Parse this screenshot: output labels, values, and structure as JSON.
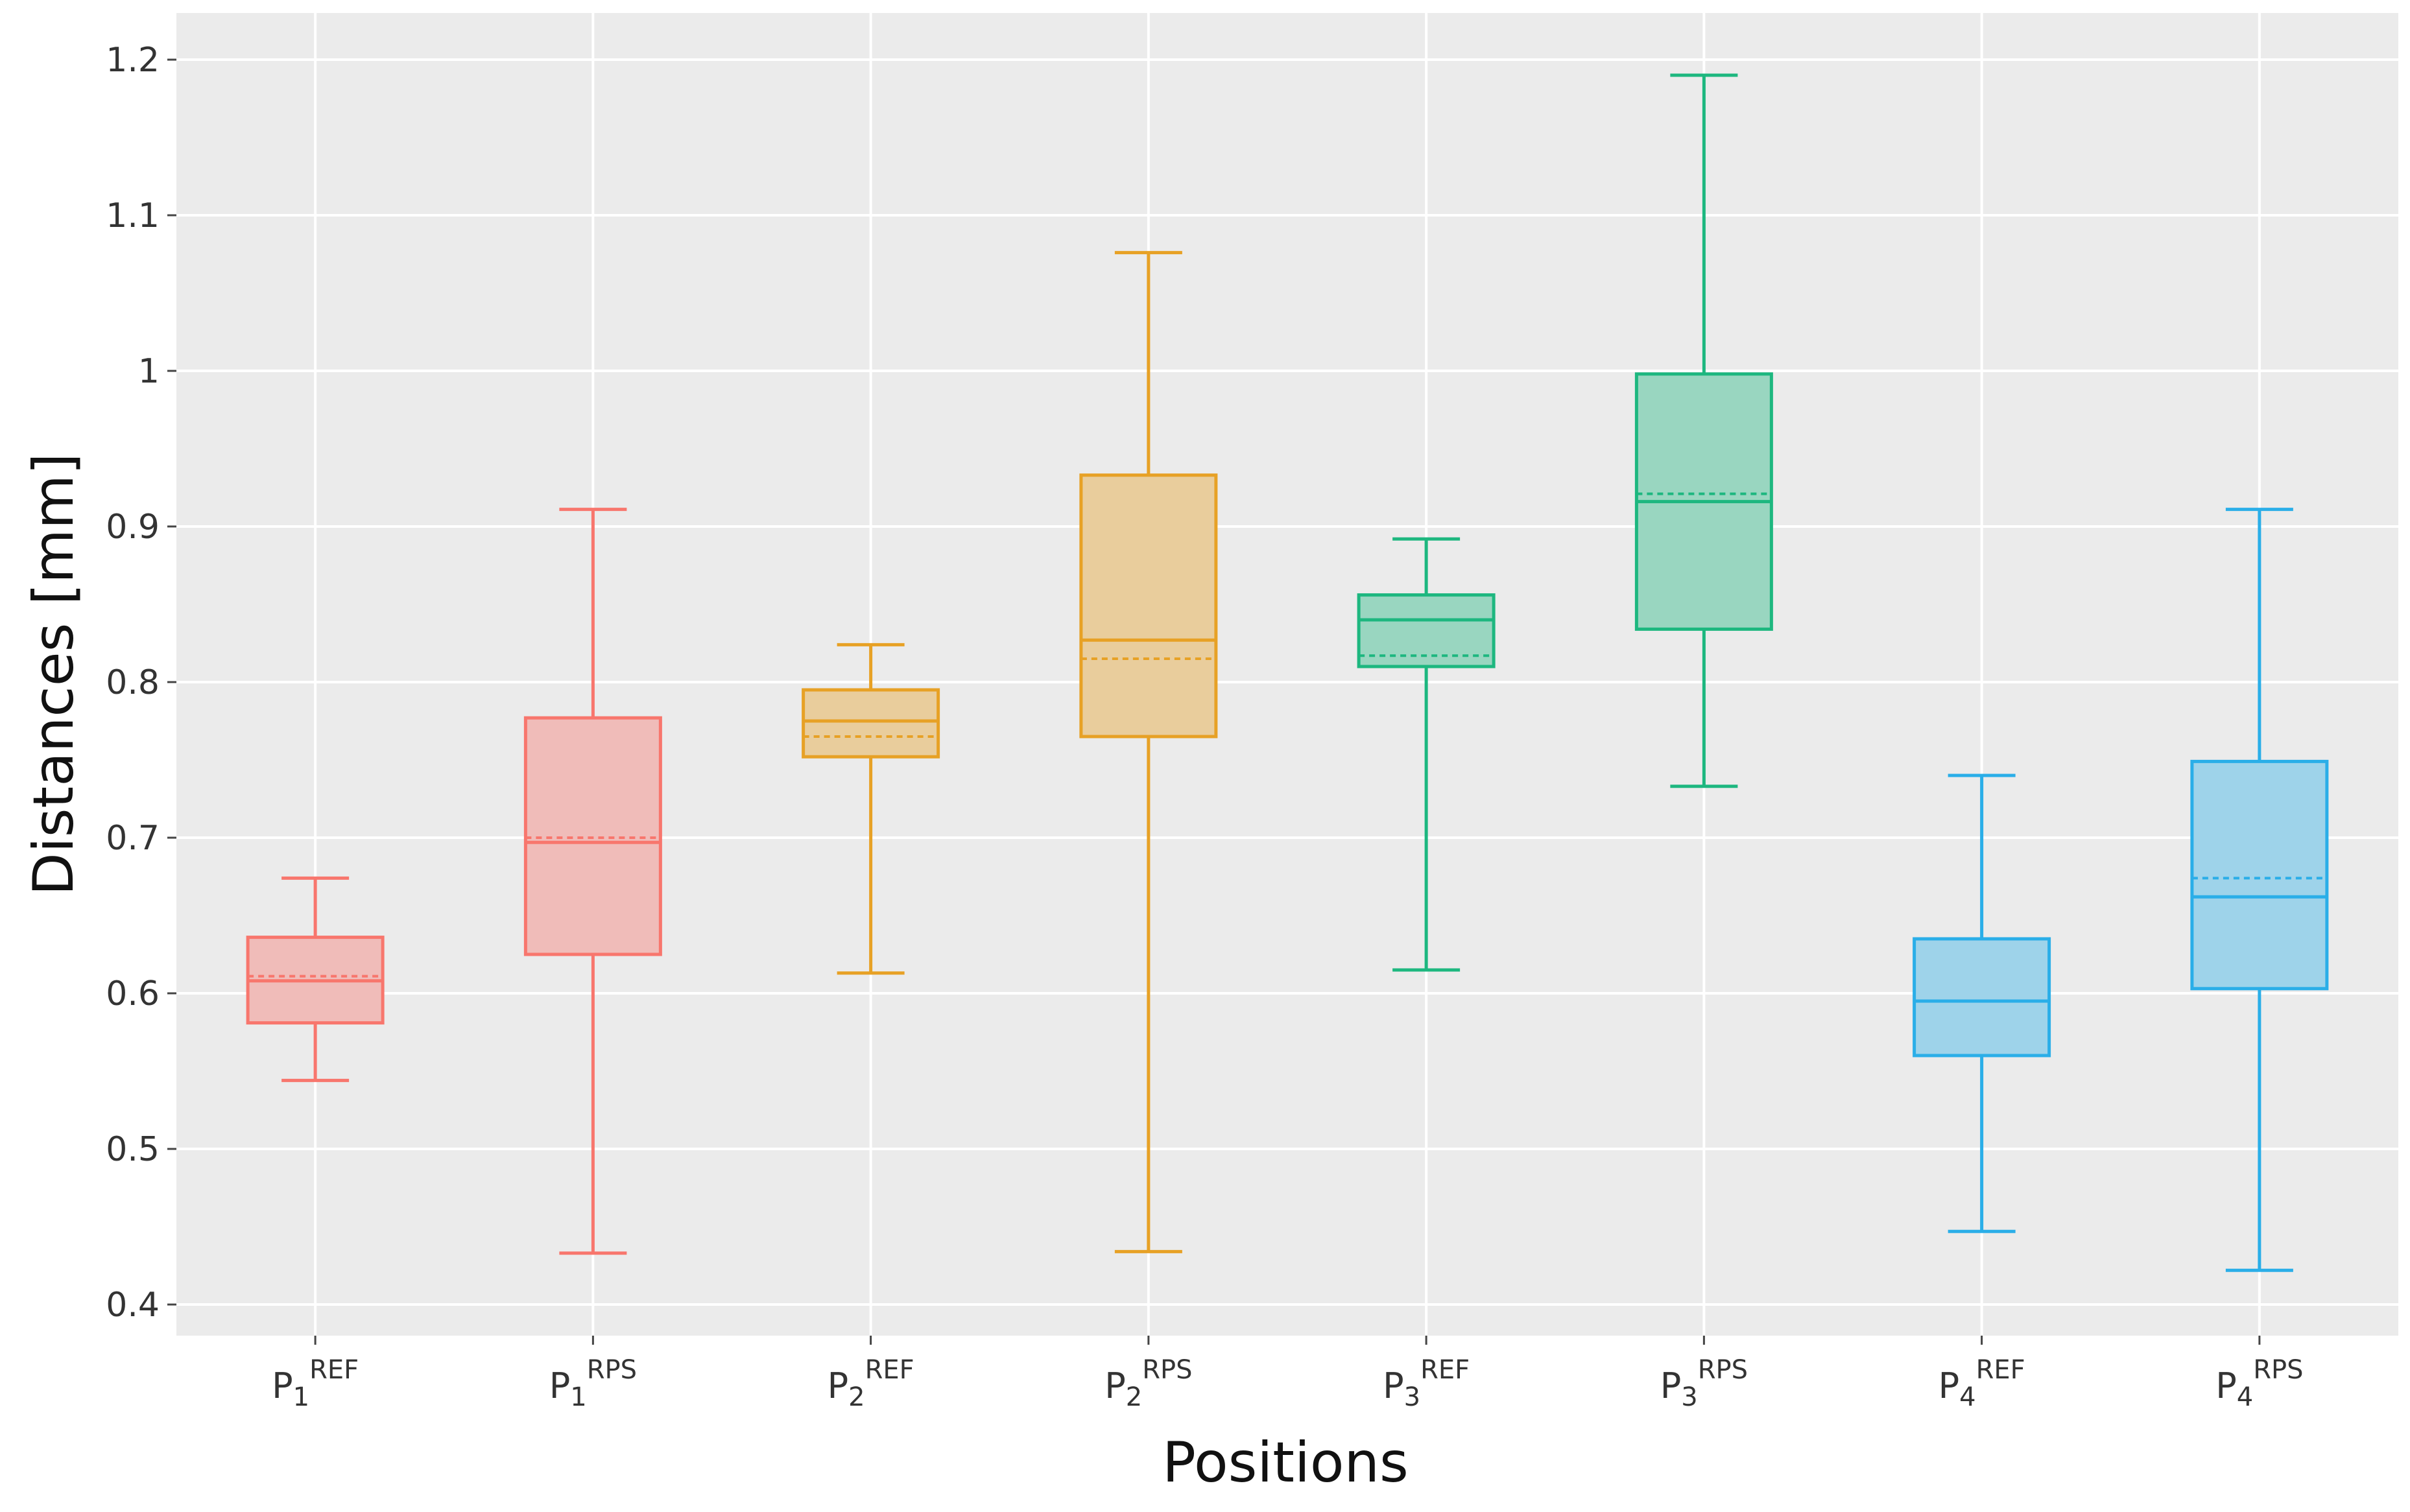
{
  "chart_data": {
    "type": "box",
    "xlabel": "Positions",
    "ylabel": "Distances [mm]",
    "ylim": [
      0.38,
      1.23
    ],
    "yticks": [
      0.4,
      0.5,
      0.6,
      0.7,
      0.8,
      0.9,
      1,
      1.1,
      1.2
    ],
    "ytick_labels": [
      "0.4",
      "0.5",
      "0.6",
      "0.7",
      "0.8",
      "0.9",
      "1",
      "1.1",
      "1.2"
    ],
    "grid": true,
    "box_fill_opacity": 0.4,
    "series": [
      {
        "name": "P1REF",
        "label_base": "P",
        "label_sub": "1",
        "label_sup": "REF",
        "color": "#F8766D",
        "whisker_low": 0.544,
        "q1": 0.581,
        "median": 0.608,
        "mean": 0.611,
        "q3": 0.636,
        "whisker_high": 0.674
      },
      {
        "name": "P1RPS",
        "label_base": "P",
        "label_sub": "1",
        "label_sup": "RPS",
        "color": "#F8766D",
        "whisker_low": 0.433,
        "q1": 0.625,
        "median": 0.697,
        "mean": 0.7,
        "q3": 0.777,
        "whisker_high": 0.911
      },
      {
        "name": "P2REF",
        "label_base": "P",
        "label_sub": "2",
        "label_sup": "REF",
        "color": "#E7A125",
        "whisker_low": 0.613,
        "q1": 0.752,
        "median": 0.775,
        "mean": 0.765,
        "q3": 0.795,
        "whisker_high": 0.824
      },
      {
        "name": "P2RPS",
        "label_base": "P",
        "label_sub": "2",
        "label_sup": "RPS",
        "color": "#E7A125",
        "whisker_low": 0.434,
        "q1": 0.765,
        "median": 0.827,
        "mean": 0.815,
        "q3": 0.933,
        "whisker_high": 1.076
      },
      {
        "name": "P3REF",
        "label_base": "P",
        "label_sub": "3",
        "label_sup": "REF",
        "color": "#1DB77F",
        "whisker_low": 0.615,
        "q1": 0.81,
        "median": 0.84,
        "mean": 0.817,
        "q3": 0.856,
        "whisker_high": 0.892
      },
      {
        "name": "P3RPS",
        "label_base": "P",
        "label_sub": "3",
        "label_sup": "RPS",
        "color": "#1DB77F",
        "whisker_low": 0.733,
        "q1": 0.834,
        "median": 0.916,
        "mean": 0.921,
        "q3": 0.998,
        "whisker_high": 1.19
      },
      {
        "name": "P4REF",
        "label_base": "P",
        "label_sub": "4",
        "label_sup": "REF",
        "color": "#2AAEE8",
        "whisker_low": 0.447,
        "q1": 0.56,
        "median": 0.595,
        "mean": 0.595,
        "q3": 0.635,
        "whisker_high": 0.74
      },
      {
        "name": "P4RPS",
        "label_base": "P",
        "label_sub": "4",
        "label_sup": "RPS",
        "color": "#2AAEE8",
        "whisker_low": 0.422,
        "q1": 0.603,
        "median": 0.662,
        "mean": 0.674,
        "q3": 0.749,
        "whisker_high": 0.911
      }
    ]
  }
}
